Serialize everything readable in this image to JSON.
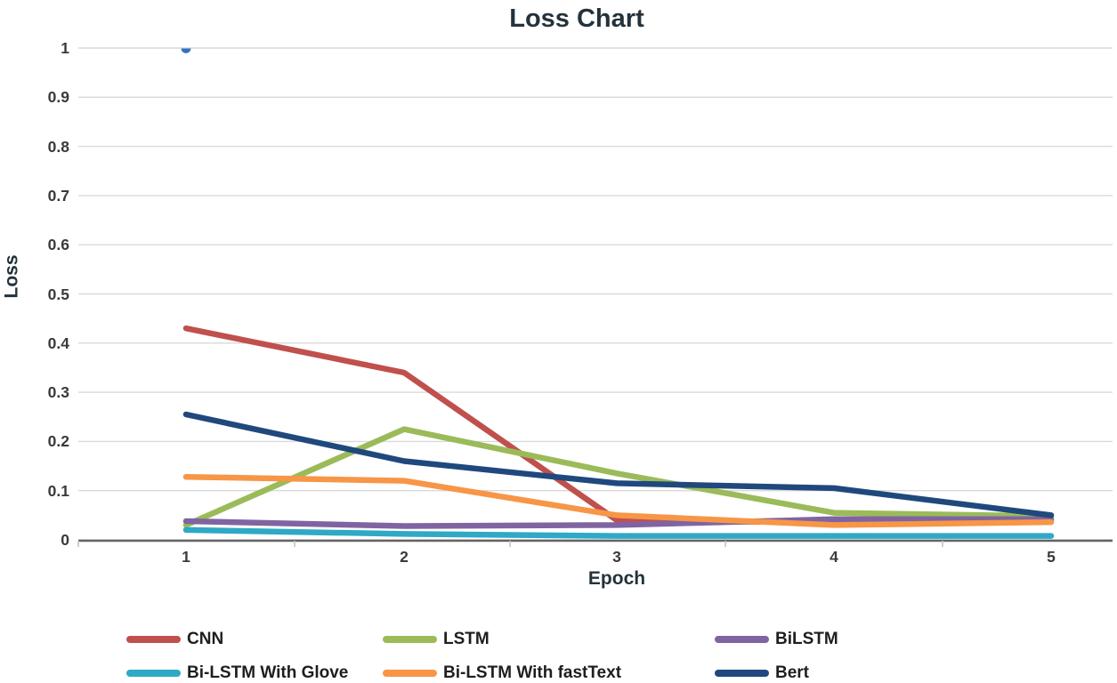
{
  "page": {
    "background": "#FFFFFF"
  },
  "chart_data": {
    "type": "line",
    "title": "Loss Chart",
    "xlabel": "Epoch",
    "ylabel": "Loss",
    "categories": [
      "1",
      "2",
      "3",
      "4",
      "5"
    ],
    "yticks": [
      "0",
      "0.1",
      "0.2",
      "0.3",
      "0.4",
      "0.5",
      "0.6",
      "0.7",
      "0.8",
      "0.9",
      "1"
    ],
    "ylim": [
      0,
      1
    ],
    "grid": true,
    "legend_position": "bottom-left, 3 columns x 2 rows",
    "gridline_color": "#D9D9D9",
    "axis_line_color": "#646464",
    "tick_mark_color": "#C2C2C2",
    "series": [
      {
        "name": "CNN",
        "color": "#C0504D",
        "values": [
          0.43,
          0.34,
          0.04,
          0.035,
          0.04
        ]
      },
      {
        "name": "LSTM",
        "color": "#9BBB59",
        "values": [
          0.03,
          0.225,
          0.135,
          0.055,
          0.048
        ]
      },
      {
        "name": "BiLSTM",
        "color": "#8064A2",
        "values": [
          0.038,
          0.028,
          0.03,
          0.042,
          0.042
        ]
      },
      {
        "name": "Bi-LSTM With Glove",
        "color": "#2EA9C6",
        "values": [
          0.02,
          0.012,
          0.008,
          0.008,
          0.008
        ]
      },
      {
        "name": "Bi-LSTM With fastText",
        "color": "#F79646",
        "values": [
          0.128,
          0.12,
          0.05,
          0.03,
          0.036
        ]
      },
      {
        "name": "Bert",
        "color": "#1F497D",
        "values": [
          0.255,
          0.16,
          0.115,
          0.105,
          0.05
        ]
      }
    ],
    "stray_point": {
      "x": "1",
      "y": 1.0,
      "color": "#3273BA",
      "shape": "down-semicircle-marker"
    }
  }
}
